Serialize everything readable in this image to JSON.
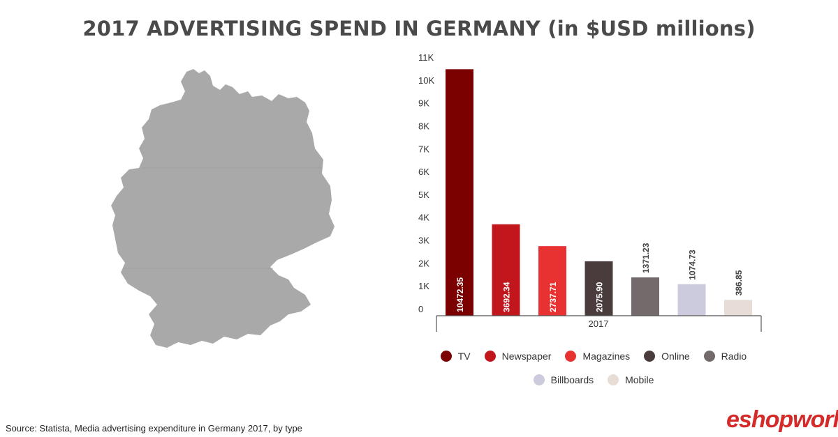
{
  "title": "2017 ADVERTISING SPEND IN GERMANY (in $USD millions)",
  "source": "Source: Statista, Media advertising expenditure in Germany 2017, by type",
  "logo_text": "eshopworld",
  "colors": {
    "map_fill": "#a9a9a9",
    "axis": "#555555"
  },
  "chart_data": {
    "type": "bar",
    "title": "2017 ADVERTISING SPEND IN GERMANY (in $USD millions)",
    "categories": [
      "2017"
    ],
    "ylim": [
      0,
      11000
    ],
    "yticks": [
      {
        "value": 0,
        "label": "0"
      },
      {
        "value": 1000,
        "label": "1K"
      },
      {
        "value": 2000,
        "label": "2K"
      },
      {
        "value": 3000,
        "label": "3K"
      },
      {
        "value": 4000,
        "label": "4K"
      },
      {
        "value": 5000,
        "label": "5K"
      },
      {
        "value": 6000,
        "label": "6K"
      },
      {
        "value": 7000,
        "label": "7K"
      },
      {
        "value": 8000,
        "label": "8K"
      },
      {
        "value": 9000,
        "label": "9K"
      },
      {
        "value": 10000,
        "label": "10K"
      },
      {
        "value": 11000,
        "label": "11K"
      }
    ],
    "grid": false,
    "legend_position": "bottom",
    "series": [
      {
        "name": "TV",
        "value": 10472.35,
        "label": "10472.35",
        "color": "#7b0000",
        "label_inside": true
      },
      {
        "name": "Newspaper",
        "value": 3692.34,
        "label": "3692.34",
        "color": "#c0161c",
        "label_inside": true
      },
      {
        "name": "Magazines",
        "value": 2737.71,
        "label": "2737.71",
        "color": "#e83232",
        "label_inside": true
      },
      {
        "name": "Online",
        "value": 2075.9,
        "label": "2075.90",
        "color": "#4a3c3c",
        "label_inside": true
      },
      {
        "name": "Radio",
        "value": 1371.23,
        "label": "1371.23",
        "color": "#736b6b",
        "label_inside": false
      },
      {
        "name": "Billboards",
        "value": 1074.73,
        "label": "1074.73",
        "color": "#cccbdd",
        "label_inside": false
      },
      {
        "name": "Mobile",
        "value": 386.85,
        "label": "386.85",
        "color": "#e7ddd6",
        "label_inside": false
      }
    ],
    "legend_rows": [
      [
        "TV",
        "Newspaper",
        "Magazines",
        "Online",
        "Radio"
      ],
      [
        "Billboards",
        "Mobile"
      ]
    ]
  }
}
